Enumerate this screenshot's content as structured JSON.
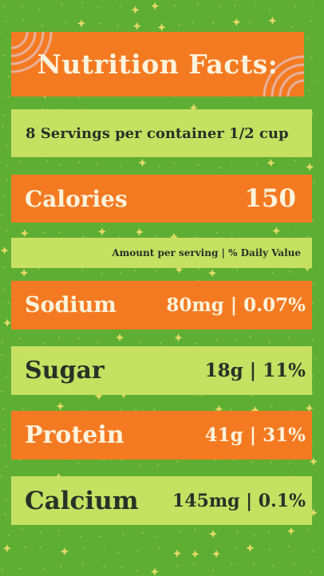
{
  "title": "Nutrition Facts:",
  "serving": "8 Servings per container  1/2 cup",
  "calories": {
    "label": "Calories",
    "value": "150"
  },
  "amount_header": "Amount per serving | % Daily Value",
  "nutrients": {
    "sodium": {
      "label": "Sodium",
      "value": "80mg | 0.07%"
    },
    "sugar": {
      "label": "Sugar",
      "value": "18g | 11%"
    },
    "protein": {
      "label": "Protein",
      "value": "41g | 31%"
    },
    "calcium": {
      "label": "Calcium",
      "value": "145mg | 0.1%"
    }
  },
  "colors": {
    "background": "#5fae34",
    "orange": "#f47a22",
    "lime": "#c6e062",
    "sparkle": "#f2e06a"
  }
}
